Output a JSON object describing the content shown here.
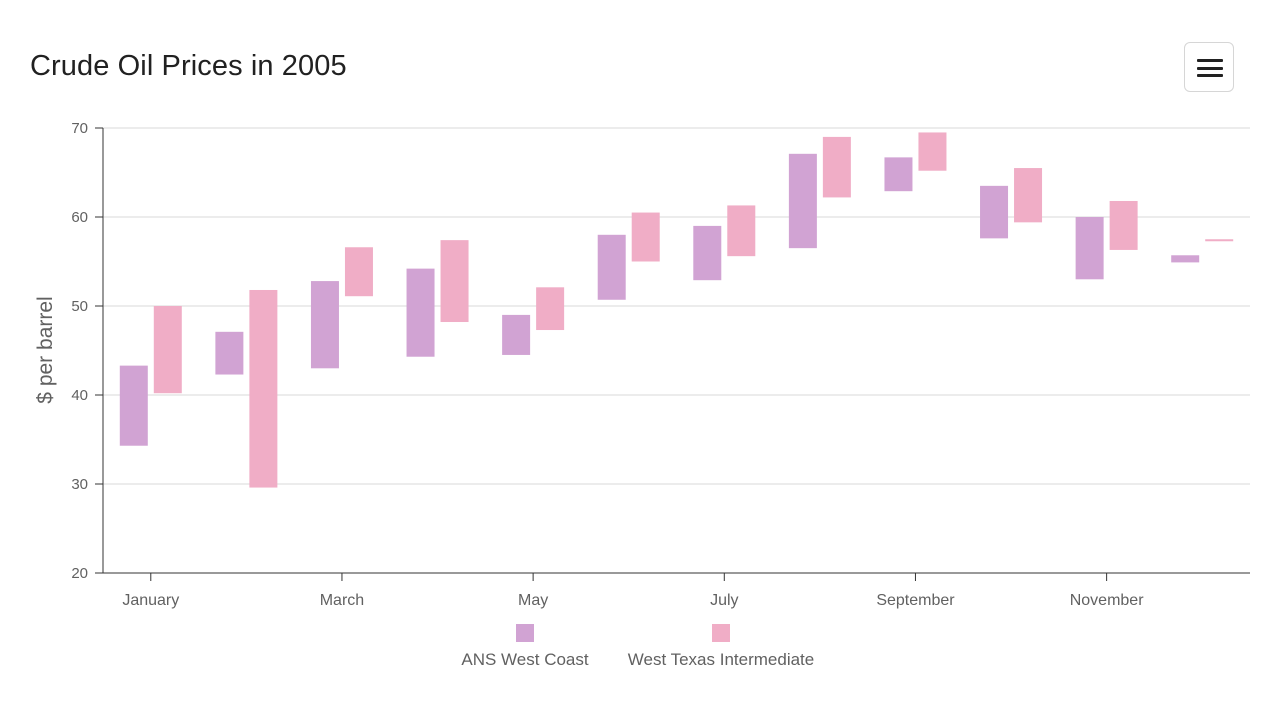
{
  "title": "Crude Oil Prices in 2005",
  "menu": {
    "icon": "hamburger-menu-icon"
  },
  "colors": {
    "ans": "#d1a3d3",
    "wti": "#f0adc6",
    "grid": "#d9d9d9",
    "axis": "#333333",
    "text": "#616161"
  },
  "chart_data": {
    "type": "range-bar",
    "title": "Crude Oil Prices in 2005",
    "ylabel": "$ per barrel",
    "ylim": [
      20,
      70
    ],
    "yticks": [
      20,
      30,
      40,
      50,
      60,
      70
    ],
    "grid": true,
    "legend_position": "bottom",
    "categories": [
      "Jan",
      "Feb",
      "Mar",
      "Apr",
      "May",
      "Jun",
      "Jul",
      "Aug",
      "Sep",
      "Oct",
      "Nov",
      "Dec"
    ],
    "x_tick_labels": [
      "January",
      "",
      "March",
      "",
      "May",
      "",
      "July",
      "",
      "September",
      "",
      "November",
      ""
    ],
    "series": [
      {
        "name": "ANS West Coast",
        "color": "#d1a3d3",
        "low": [
          34.3,
          42.3,
          43.0,
          44.3,
          44.5,
          50.7,
          52.9,
          56.5,
          62.9,
          57.6,
          53.0,
          54.9
        ],
        "high": [
          43.3,
          47.1,
          52.8,
          54.2,
          49.0,
          58.0,
          59.0,
          67.1,
          66.7,
          63.5,
          60.0,
          55.7
        ]
      },
      {
        "name": "West Texas Intermediate",
        "color": "#f0adc6",
        "low": [
          40.2,
          29.6,
          51.1,
          48.2,
          47.3,
          55.0,
          55.6,
          62.2,
          65.2,
          59.4,
          56.3,
          57.3
        ],
        "high": [
          50.0,
          51.8,
          56.6,
          57.4,
          52.1,
          60.5,
          61.3,
          69.0,
          69.5,
          65.5,
          61.8,
          57.5
        ]
      }
    ]
  }
}
